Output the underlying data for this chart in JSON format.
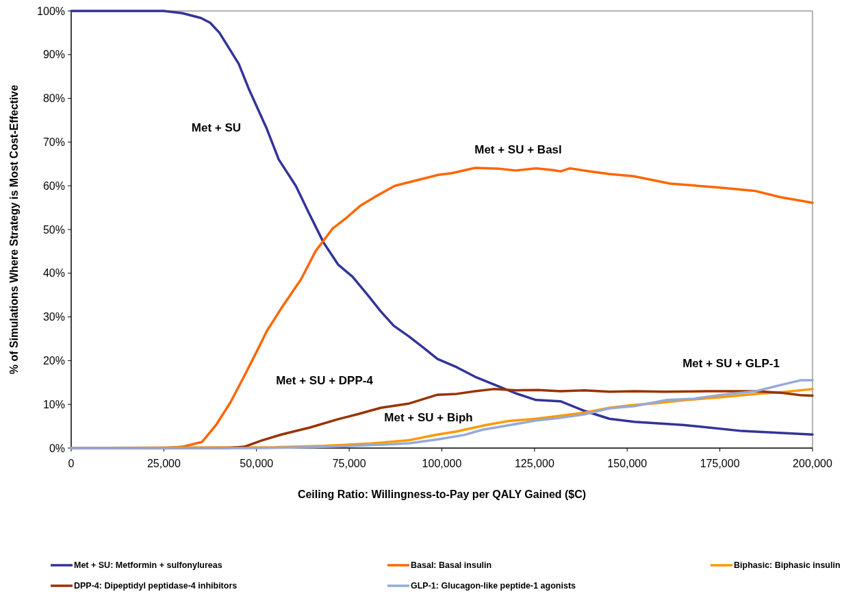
{
  "chart_data": {
    "type": "line",
    "xlabel": "Ceiling Ratio: Willingness-to-Pay per QALY Gained ($C)",
    "ylabel": "% of Simulations Where Strategy is Most Cost-Effective",
    "xlim": [
      0,
      200000
    ],
    "ylim": [
      0,
      100
    ],
    "xticks": [
      0,
      {
        "value": 25000,
        "label": "25,000"
      },
      {
        "value": 50000,
        "label": "50,000"
      },
      {
        "value": 75000,
        "label": "75,000"
      },
      {
        "value": 100000,
        "label": "100,000"
      },
      {
        "value": 125000,
        "label": "125,000"
      },
      {
        "value": 150000,
        "label": "150,000"
      },
      {
        "value": 175000,
        "label": "175,000"
      },
      {
        "value": 200000,
        "label": "200,000"
      }
    ],
    "yticks": [
      {
        "value": 0,
        "label": "0%"
      },
      {
        "value": 10,
        "label": "10%"
      },
      {
        "value": 20,
        "label": "20%"
      },
      {
        "value": 30,
        "label": "30%"
      },
      {
        "value": 40,
        "label": "40%"
      },
      {
        "value": 50,
        "label": "50%"
      },
      {
        "value": 60,
        "label": "60%"
      },
      {
        "value": 70,
        "label": "70%"
      },
      {
        "value": 80,
        "label": "80%"
      },
      {
        "value": 90,
        "label": "90%"
      },
      {
        "value": 100,
        "label": "100%"
      }
    ],
    "grid": false,
    "legend": "bottom",
    "marker": "none",
    "line_style": "solid",
    "series": [
      {
        "name": "Met + SU: Metformin + sulfonylureas",
        "color": "#333399",
        "x": [
          0,
          25000,
          30000,
          35000,
          37500,
          40000,
          45200,
          48000,
          52800,
          56000,
          60600,
          64000,
          68100,
          72000,
          75900,
          80000,
          83500,
          87000,
          91200,
          95000,
          98800,
          104000,
          109000,
          115400,
          120000,
          125400,
          132000,
          138500,
          145200,
          152000,
          165000,
          181000,
          200000
        ],
        "values": [
          100,
          100,
          99.5,
          98.4,
          97.3,
          95,
          87.9,
          82,
          73,
          66,
          60,
          54,
          47,
          42,
          39.2,
          35,
          31.3,
          28,
          25.5,
          23,
          20.4,
          18.5,
          16.3,
          14.1,
          12.5,
          11,
          10.7,
          8.5,
          6.7,
          6,
          5.3,
          3.9,
          3.1
        ]
      },
      {
        "name": "Basal: Basal insulin",
        "color": "#ff6600",
        "x": [
          0,
          25000,
          30000,
          35300,
          39100,
          43000,
          46700,
          50000,
          52800,
          56700,
          62000,
          65900,
          70500,
          74000,
          78100,
          82000,
          87300,
          92000,
          99000,
          102700,
          109000,
          115400,
          120000,
          125400,
          130000,
          132000,
          134600,
          140000,
          145200,
          151800,
          161600,
          174900,
          184700,
          191300,
          200000
        ],
        "values": [
          0,
          0,
          0.3,
          1.4,
          5.3,
          10.5,
          16.5,
          22,
          26.8,
          32,
          38.6,
          45,
          50.2,
          52.5,
          55.5,
          57.5,
          60,
          61,
          62.5,
          62.9,
          64.1,
          63.9,
          63.5,
          64,
          63.6,
          63.3,
          64,
          63.3,
          62.7,
          62.2,
          60.5,
          59.6,
          58.8,
          57.4,
          56.1
        ]
      },
      {
        "name": "Biphasic: Biphasic insulin",
        "color": "#ff9900",
        "x": [
          0,
          55000,
          68100,
          80000,
          91200,
          98800,
          104000,
          112000,
          118000,
          125400,
          131000,
          138500,
          145200,
          151000,
          158300,
          166000,
          174900,
          184700,
          192000,
          200000
        ],
        "values": [
          0,
          0.2,
          0.5,
          1,
          1.8,
          3.1,
          3.8,
          5.3,
          6.2,
          6.7,
          7.3,
          8.1,
          9.2,
          9.8,
          10.3,
          11,
          11.6,
          12.4,
          12.8,
          13.5
        ]
      },
      {
        "name": "DPP-4: Dipeptidyl peptidase-4 inhibitors",
        "color": "#993300",
        "x": [
          0,
          42000,
          46700,
          51300,
          56700,
          64400,
          72000,
          77500,
          83500,
          91200,
          98800,
          104000,
          109000,
          114000,
          120000,
          126000,
          132000,
          138500,
          145200,
          152000,
          160000,
          171600,
          184700,
          192000,
          196700,
          200000
        ],
        "values": [
          0,
          0,
          0.3,
          1.7,
          3.1,
          4.7,
          6.6,
          7.8,
          9.2,
          10.2,
          12.2,
          12.4,
          13,
          13.5,
          13.2,
          13.3,
          13,
          13.2,
          12.9,
          13,
          12.9,
          13,
          13,
          12.6,
          12.1,
          12
        ]
      },
      {
        "name": "GLP-1: Glucagon-like peptide-1 agonists",
        "color": "#95a9d8",
        "x": [
          0,
          50000,
          65000,
          75900,
          84000,
          91200,
          99000,
          106000,
          111000,
          118000,
          125400,
          131000,
          138500,
          145200,
          152000,
          160800,
          168000,
          174900,
          184700,
          191300,
          196700,
          200000
        ],
        "values": [
          0,
          0,
          0.2,
          0.5,
          0.8,
          1.1,
          2,
          3,
          4.2,
          5.2,
          6.3,
          6.8,
          7.7,
          9.1,
          9.6,
          11,
          11.3,
          12.1,
          13,
          14.4,
          15.5,
          15.5
        ]
      }
    ],
    "annotations": [
      "Met + SU",
      "Met + SU + Basl",
      "Met + SU + DPP-4",
      "Met + SU + Biph",
      "Met + SU + GLP-1"
    ]
  }
}
